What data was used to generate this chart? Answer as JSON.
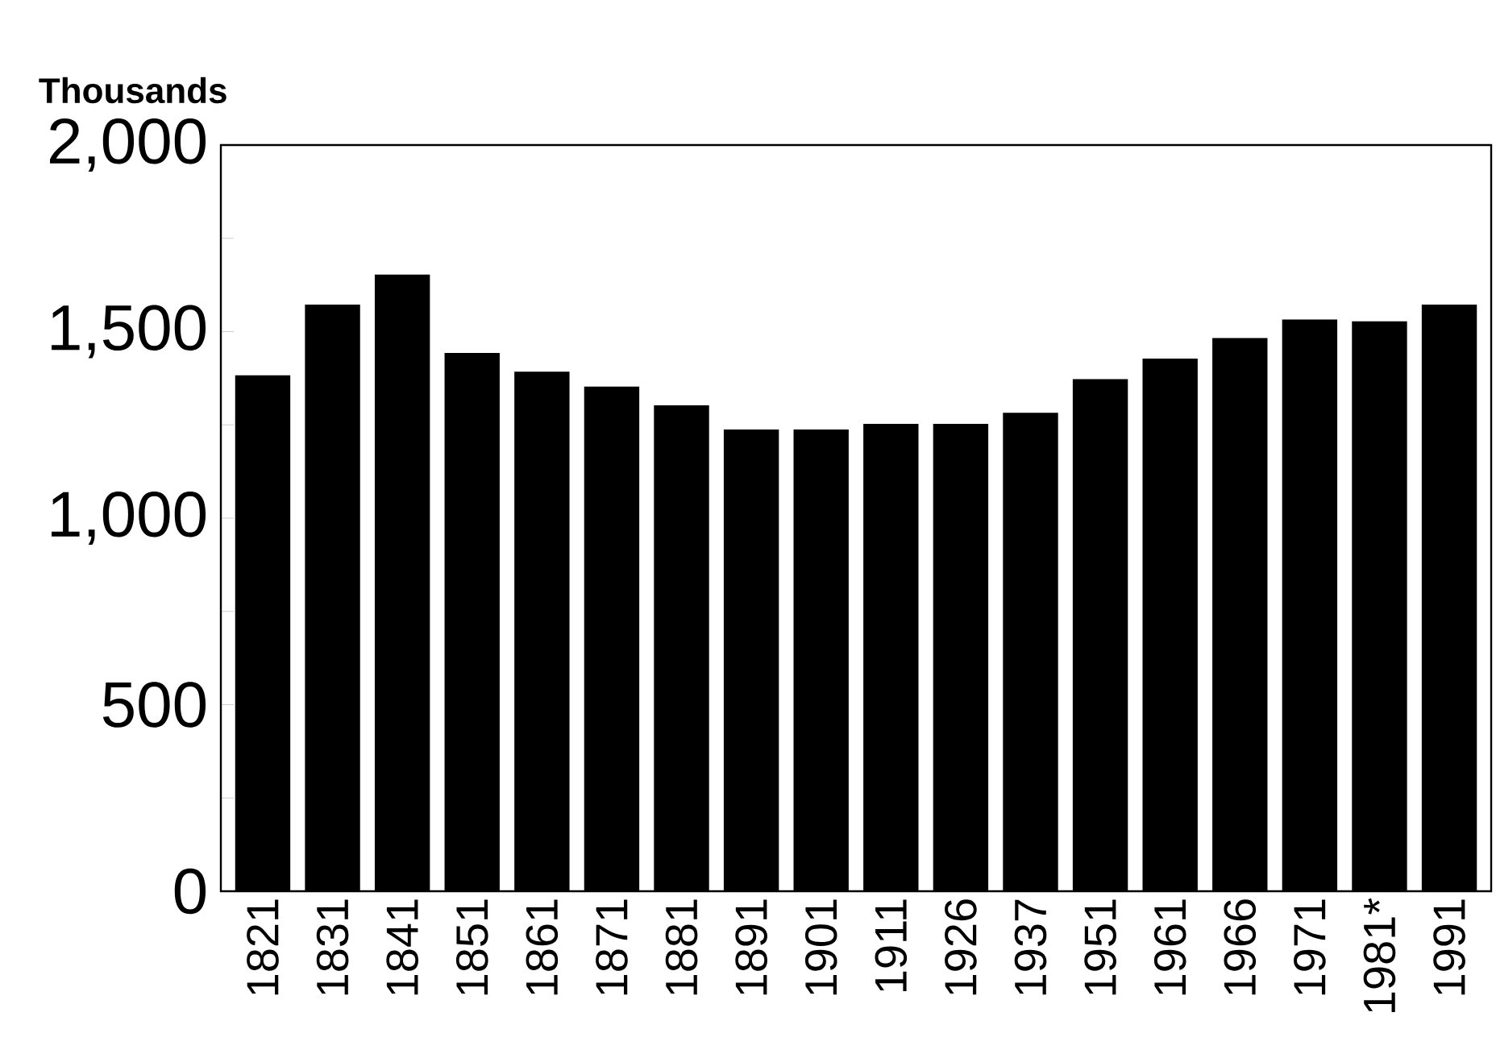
{
  "chart_data": {
    "type": "bar",
    "ylabel": "Thousands",
    "categories": [
      "1821",
      "1831",
      "1841",
      "1851",
      "1861",
      "1871",
      "1881",
      "1891",
      "1901",
      "1911",
      "1926",
      "1937",
      "1951",
      "1961",
      "1966",
      "1971",
      "1981*",
      "1991"
    ],
    "values": [
      1380,
      1570,
      1650,
      1440,
      1390,
      1350,
      1300,
      1235,
      1235,
      1250,
      1250,
      1280,
      1370,
      1425,
      1480,
      1530,
      1525,
      1570
    ],
    "color": "#000000",
    "ylim": [
      0,
      2000
    ],
    "yticks": [
      0,
      {
        "value": 250,
        "label": null
      },
      500,
      {
        "value": 750,
        "label": null
      },
      {
        "value": 1000,
        "label": "1,000"
      },
      {
        "value": 1250,
        "label": null
      },
      {
        "value": 1500,
        "label": "1,500"
      },
      {
        "value": 1750,
        "label": null
      },
      {
        "value": 2000,
        "label": "2,000"
      }
    ]
  }
}
